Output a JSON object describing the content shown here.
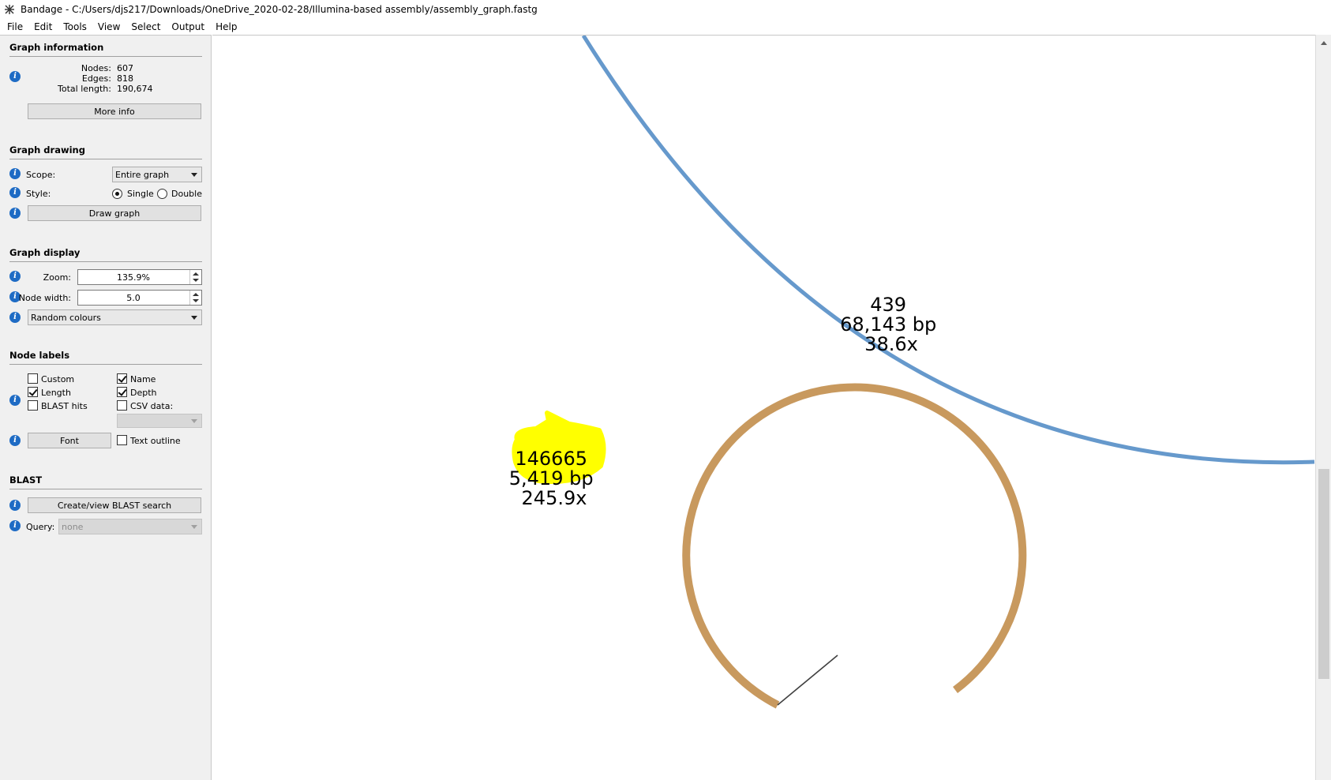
{
  "window": {
    "title": "Bandage - C:/Users/djs217/Downloads/OneDrive_2020-02-28/Illumina-based assembly/assembly_graph.fastg",
    "icon": "bandage-app-icon"
  },
  "menu": [
    "File",
    "Edit",
    "Tools",
    "View",
    "Select",
    "Output",
    "Help"
  ],
  "graph_information": {
    "title": "Graph information",
    "nodes_label": "Nodes:",
    "nodes_value": "607",
    "edges_label": "Edges:",
    "edges_value": "818",
    "length_label": "Total length:",
    "length_value": "190,674",
    "more_info_button": "More info"
  },
  "graph_drawing": {
    "title": "Graph drawing",
    "scope_label": "Scope:",
    "scope_value": "Entire graph",
    "style_label": "Style:",
    "style_single": "Single",
    "style_double": "Double",
    "style_selected": "Single",
    "draw_button": "Draw graph"
  },
  "graph_display": {
    "title": "Graph display",
    "zoom_label": "Zoom:",
    "zoom_value": "135.9%",
    "node_width_label": "Node width:",
    "node_width_value": "5.0",
    "colour_scheme": "Random colours"
  },
  "node_labels": {
    "title": "Node labels",
    "custom": {
      "label": "Custom",
      "checked": false
    },
    "length": {
      "label": "Length",
      "checked": true
    },
    "blast_hits": {
      "label": "BLAST hits",
      "checked": false
    },
    "name": {
      "label": "Name",
      "checked": true
    },
    "depth": {
      "label": "Depth",
      "checked": true
    },
    "csv_data": {
      "label": "CSV data:",
      "checked": false
    },
    "font_button": "Font",
    "text_outline": {
      "label": "Text outline",
      "checked": false
    }
  },
  "blast": {
    "title": "BLAST",
    "search_button": "Create/view BLAST search",
    "query_label": "Query:",
    "query_value": "none"
  },
  "graph_nodes": [
    {
      "name": "439",
      "length": "68,143 bp",
      "depth": "38.6x",
      "color": "#6699cc"
    },
    {
      "name": "146665",
      "length": "5,419 bp",
      "depth": "245.9x",
      "color": "#c8995e",
      "highlight": "#ffff00"
    }
  ],
  "colors": {
    "panel_bg": "#f0f0f0",
    "info_icon": "#1e6bc4",
    "edge": "#404040"
  }
}
